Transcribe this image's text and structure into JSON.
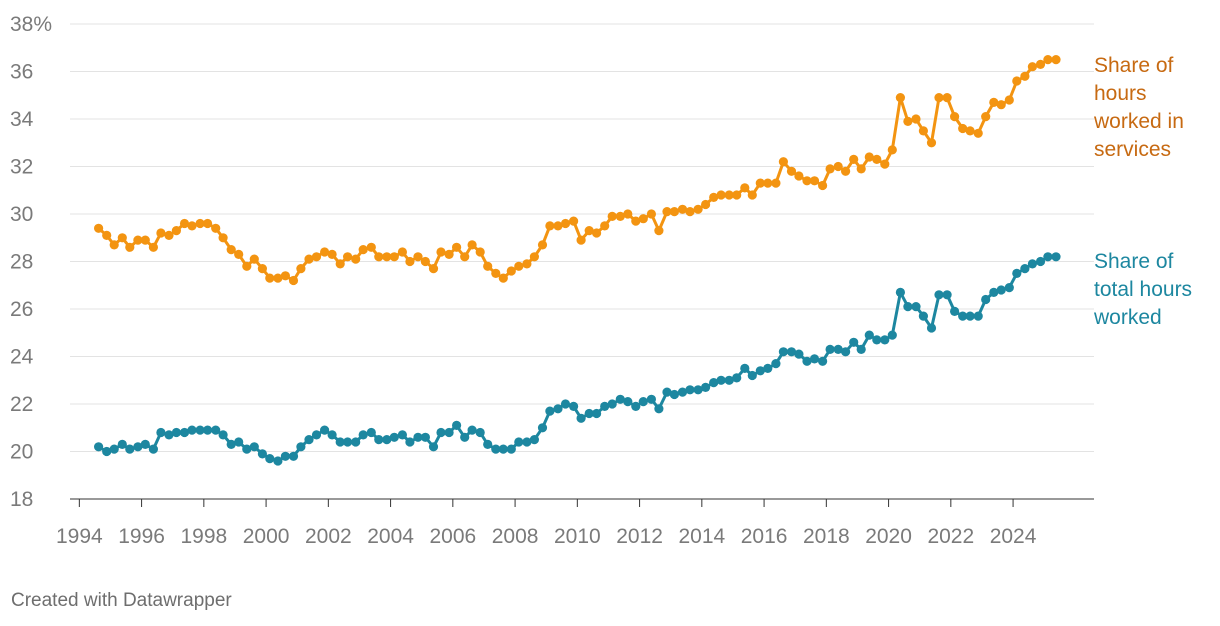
{
  "chart_data": {
    "type": "line",
    "title": "",
    "xlabel": "",
    "ylabel": "",
    "xlim": [
      1993.7,
      2026.6
    ],
    "ylim": [
      18,
      38
    ],
    "x_ticks": [
      "1994",
      "1996",
      "1998",
      "2000",
      "2002",
      "2004",
      "2006",
      "2008",
      "2010",
      "2012",
      "2014",
      "2016",
      "2018",
      "2020",
      "2022",
      "2024"
    ],
    "y_ticks": [
      "18",
      "20",
      "22",
      "24",
      "26",
      "28",
      "30",
      "32",
      "34",
      "36",
      "38%"
    ],
    "y_tick_values": [
      18,
      20,
      22,
      24,
      26,
      28,
      30,
      32,
      34,
      36,
      38
    ],
    "x": [
      1994.62,
      1994.88,
      1995.12,
      1995.38,
      1995.62,
      1995.88,
      1996.12,
      1996.38,
      1996.62,
      1996.88,
      1997.12,
      1997.38,
      1997.62,
      1997.88,
      1998.12,
      1998.38,
      1998.62,
      1998.88,
      1999.12,
      1999.38,
      1999.62,
      1999.88,
      2000.12,
      2000.38,
      2000.62,
      2000.88,
      2001.12,
      2001.38,
      2001.62,
      2001.88,
      2002.12,
      2002.38,
      2002.62,
      2002.88,
      2003.12,
      2003.38,
      2003.62,
      2003.88,
      2004.12,
      2004.38,
      2004.62,
      2004.88,
      2005.12,
      2005.38,
      2005.62,
      2005.88,
      2006.12,
      2006.38,
      2006.62,
      2006.88,
      2007.12,
      2007.38,
      2007.62,
      2007.88,
      2008.12,
      2008.38,
      2008.62,
      2008.88,
      2009.12,
      2009.38,
      2009.62,
      2009.88,
      2010.12,
      2010.38,
      2010.62,
      2010.88,
      2011.12,
      2011.38,
      2011.62,
      2011.88,
      2012.12,
      2012.38,
      2012.62,
      2012.88,
      2013.12,
      2013.38,
      2013.62,
      2013.88,
      2014.12,
      2014.38,
      2014.62,
      2014.88,
      2015.12,
      2015.38,
      2015.62,
      2015.88,
      2016.12,
      2016.38,
      2016.62,
      2016.88,
      2017.12,
      2017.38,
      2017.62,
      2017.88,
      2018.12,
      2018.38,
      2018.62,
      2018.88,
      2019.12,
      2019.38,
      2019.62,
      2019.88,
      2020.12,
      2020.38,
      2020.62,
      2020.88,
      2021.12,
      2021.38,
      2021.62,
      2021.88,
      2022.12,
      2022.38,
      2022.62,
      2022.88,
      2023.12,
      2023.38,
      2023.62,
      2023.88,
      2024.12,
      2024.38,
      2024.62,
      2024.88,
      2025.12,
      2025.38
    ],
    "series": [
      {
        "name": "Share of hours worked in services",
        "color": "#f39411",
        "label_color": "#c76a12",
        "label_lines": [
          "Share of",
          "hours",
          "worked in",
          "services"
        ],
        "values": [
          29.4,
          29.1,
          28.7,
          29.0,
          28.6,
          28.9,
          28.9,
          28.6,
          29.2,
          29.1,
          29.3,
          29.6,
          29.5,
          29.6,
          29.6,
          29.4,
          29.0,
          28.5,
          28.3,
          27.8,
          28.1,
          27.7,
          27.3,
          27.3,
          27.4,
          27.2,
          27.7,
          28.1,
          28.2,
          28.4,
          28.3,
          27.9,
          28.2,
          28.1,
          28.5,
          28.6,
          28.2,
          28.2,
          28.2,
          28.4,
          28.0,
          28.2,
          28.0,
          27.7,
          28.4,
          28.3,
          28.6,
          28.2,
          28.7,
          28.4,
          27.8,
          27.5,
          27.3,
          27.6,
          27.8,
          27.9,
          28.2,
          28.7,
          29.5,
          29.5,
          29.6,
          29.7,
          28.9,
          29.3,
          29.2,
          29.5,
          29.9,
          29.9,
          30.0,
          29.7,
          29.8,
          30.0,
          29.3,
          30.1,
          30.1,
          30.2,
          30.1,
          30.2,
          30.4,
          30.7,
          30.8,
          30.8,
          30.8,
          31.1,
          30.8,
          31.3,
          31.3,
          31.3,
          32.2,
          31.8,
          31.6,
          31.4,
          31.4,
          31.2,
          31.9,
          32.0,
          31.8,
          32.3,
          31.9,
          32.4,
          32.3,
          32.1,
          32.7,
          34.9,
          33.9,
          34.0,
          33.5,
          33.0,
          34.9,
          34.9,
          34.1,
          33.6,
          33.5,
          33.4,
          34.1,
          34.7,
          34.6,
          34.8,
          35.6,
          35.8,
          36.2,
          36.3,
          36.5,
          36.5
        ]
      },
      {
        "name": "Share of total hours worked",
        "color": "#1d87a0",
        "label_color": "#1d87a0",
        "label_lines": [
          "Share of",
          "total hours",
          "worked"
        ],
        "values": [
          20.2,
          20.0,
          20.1,
          20.3,
          20.1,
          20.2,
          20.3,
          20.1,
          20.8,
          20.7,
          20.8,
          20.8,
          20.9,
          20.9,
          20.9,
          20.9,
          20.7,
          20.3,
          20.4,
          20.1,
          20.2,
          19.9,
          19.7,
          19.6,
          19.8,
          19.8,
          20.2,
          20.5,
          20.7,
          20.9,
          20.7,
          20.4,
          20.4,
          20.4,
          20.7,
          20.8,
          20.5,
          20.5,
          20.6,
          20.7,
          20.4,
          20.6,
          20.6,
          20.2,
          20.8,
          20.8,
          21.1,
          20.6,
          20.9,
          20.8,
          20.3,
          20.1,
          20.1,
          20.1,
          20.4,
          20.4,
          20.5,
          21.0,
          21.7,
          21.8,
          22.0,
          21.9,
          21.4,
          21.6,
          21.6,
          21.9,
          22.0,
          22.2,
          22.1,
          21.9,
          22.1,
          22.2,
          21.8,
          22.5,
          22.4,
          22.5,
          22.6,
          22.6,
          22.7,
          22.9,
          23.0,
          23.0,
          23.1,
          23.5,
          23.2,
          23.4,
          23.5,
          23.7,
          24.2,
          24.2,
          24.1,
          23.8,
          23.9,
          23.8,
          24.3,
          24.3,
          24.2,
          24.6,
          24.3,
          24.9,
          24.7,
          24.7,
          24.9,
          26.7,
          26.1,
          26.1,
          25.7,
          25.2,
          26.6,
          26.6,
          25.9,
          25.7,
          25.7,
          25.7,
          26.4,
          26.7,
          26.8,
          26.9,
          27.5,
          27.7,
          27.9,
          28.0,
          28.2,
          28.2
        ]
      }
    ]
  },
  "footer": {
    "credit": "Created with Datawrapper"
  }
}
